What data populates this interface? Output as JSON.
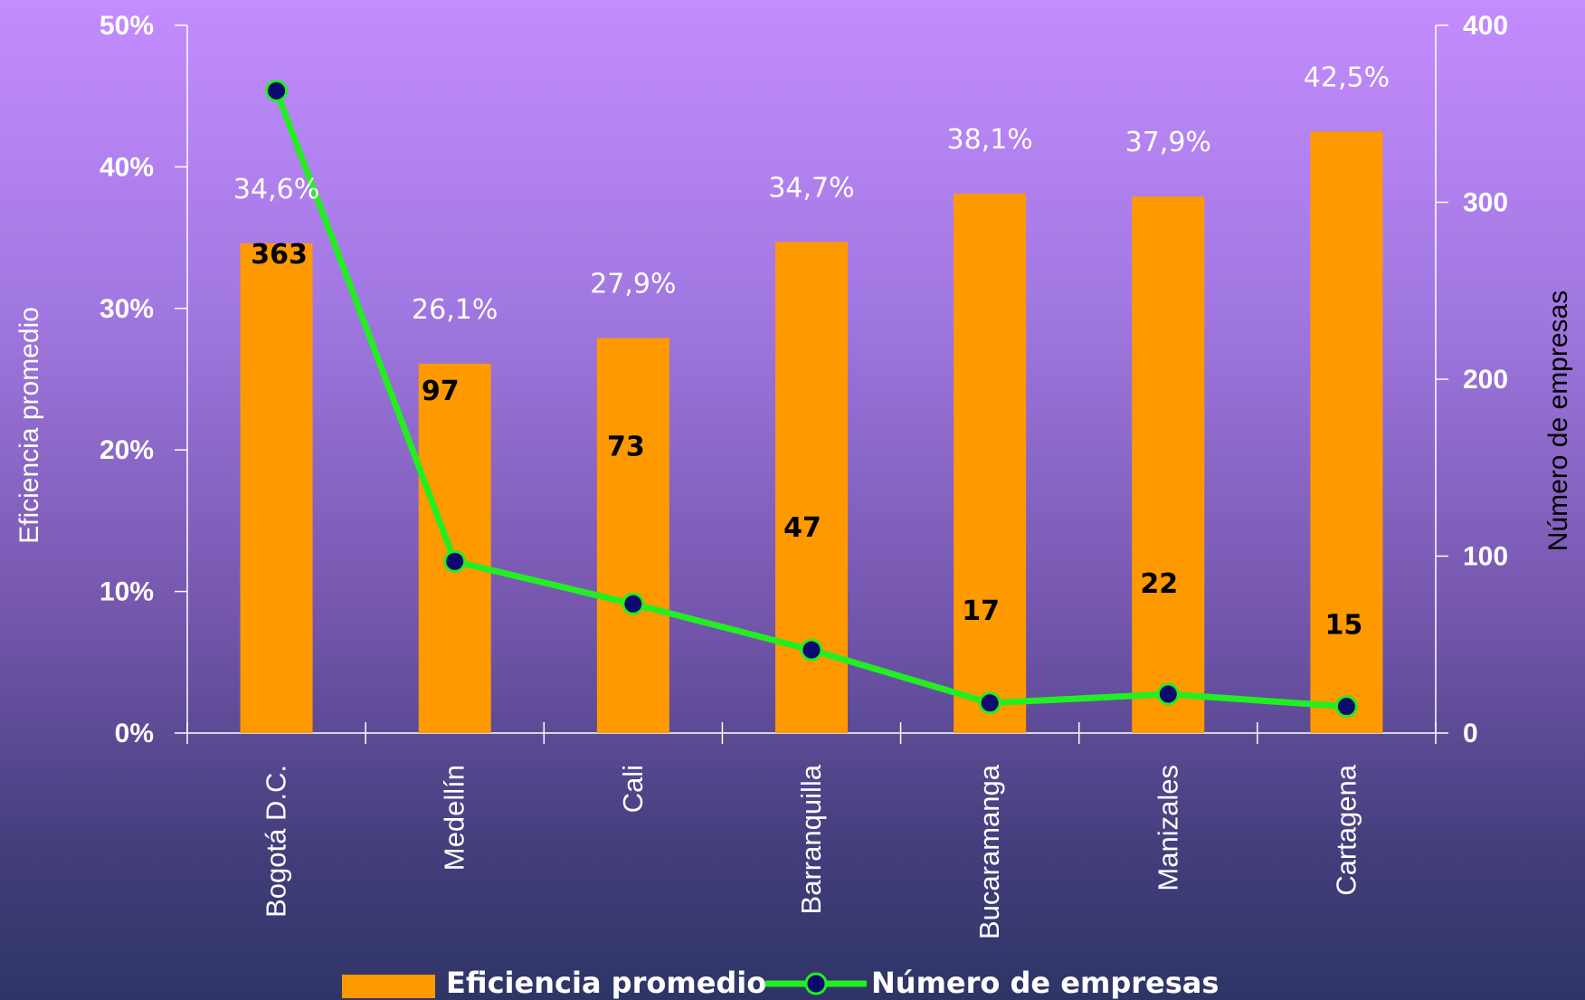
{
  "chart_data": {
    "type": "bar",
    "title": "",
    "categories": [
      "Bogotá D.C.",
      "Medellín",
      "Cali",
      "Barranquilla",
      "Bucaramanga",
      "Manizales",
      "Cartagena"
    ],
    "series": [
      {
        "name": "Eficiencia promedio",
        "type": "bar",
        "axis": "left",
        "values": [
          34.6,
          26.1,
          27.9,
          34.7,
          38.1,
          37.9,
          42.5
        ],
        "labels": [
          "34,6%",
          "26,1%",
          "27,9%",
          "34,7%",
          "38,1%",
          "37,9%",
          "42,5%"
        ],
        "color": "#ff9900"
      },
      {
        "name": "Número de empresas",
        "type": "line",
        "axis": "right",
        "values": [
          363,
          97,
          73,
          47,
          17,
          22,
          15
        ],
        "labels": [
          "363",
          "97",
          "73",
          "47",
          "17",
          "22",
          "15"
        ],
        "color": "#22ee22",
        "marker_color": "#0a0a6e"
      }
    ],
    "ylabel": "Eficiencia promedio",
    "ylabel_right": "Número de empresas",
    "ylim": [
      0,
      50
    ],
    "ylim_right": [
      0,
      400
    ],
    "yticks": [
      "0%",
      "10%",
      "20%",
      "30%",
      "40%",
      "50%"
    ],
    "yticks_right": [
      "0",
      "100",
      "200",
      "300",
      "400"
    ],
    "grid": false,
    "legend": "bottom"
  }
}
